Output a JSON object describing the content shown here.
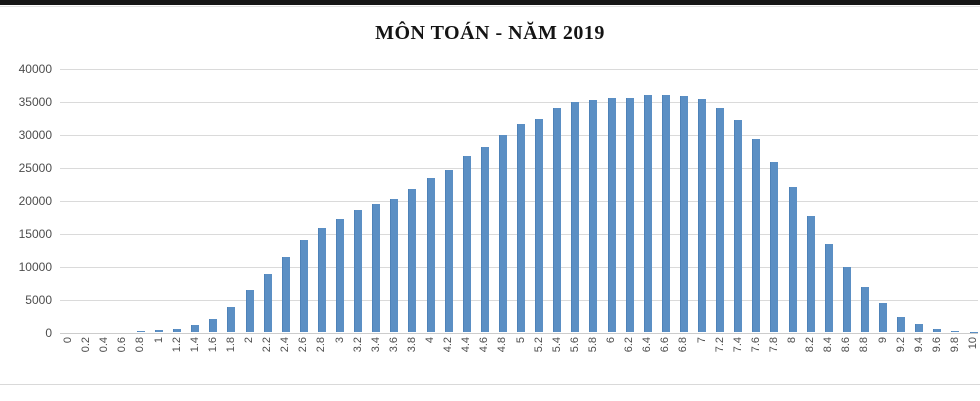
{
  "page": {
    "title": "MÔN TOÁN - NĂM 2019"
  },
  "chart_data": {
    "type": "bar",
    "title": "MÔN TOÁN - NĂM 2019",
    "xlabel": "",
    "ylabel": "",
    "ylim": [
      0,
      40000
    ],
    "y_ticks": [
      40000,
      35000,
      30000,
      25000,
      20000,
      15000,
      10000,
      5000,
      0
    ],
    "grid": "horizontal",
    "legend_position": "none",
    "x_tick_rotation": -90,
    "bar_color": "#5b8fc4",
    "categories": [
      "0",
      "0.2",
      "0.4",
      "0.6",
      "0.8",
      "1",
      "1.2",
      "1.4",
      "1.6",
      "1.8",
      "2",
      "2.2",
      "2.4",
      "2.6",
      "2.8",
      "3",
      "3.2",
      "3.4",
      "3.6",
      "3.8",
      "4",
      "4.2",
      "4.4",
      "4.6",
      "4.8",
      "5",
      "5.2",
      "5.4",
      "5.6",
      "5.8",
      "6",
      "6.2",
      "6.4",
      "6.6",
      "6.8",
      "7",
      "7.2",
      "7.4",
      "7.6",
      "7.8",
      "8",
      "8.2",
      "8.4",
      "8.6",
      "8.8",
      "9",
      "9.2",
      "9.4",
      "9.6",
      "9.8",
      "10"
    ],
    "values": [
      0,
      0,
      0,
      0,
      100,
      250,
      500,
      1000,
      1900,
      3800,
      6300,
      8800,
      11300,
      14000,
      15700,
      17100,
      18500,
      19400,
      20200,
      21700,
      23300,
      24500,
      26600,
      28100,
      29800,
      31500,
      32300,
      34000,
      34800,
      35100,
      35400,
      35500,
      35900,
      35850,
      35750,
      35300,
      33900,
      32100,
      29200,
      25700,
      22000,
      17600,
      13400,
      9900,
      6800,
      4400,
      2300,
      1200,
      450,
      150,
      20
    ]
  },
  "colors": {
    "bar": "#5b8fc4",
    "gridline": "#dadada",
    "axis_text": "#4d4d4d",
    "title_text": "#141414",
    "top_strip": "#161616"
  }
}
